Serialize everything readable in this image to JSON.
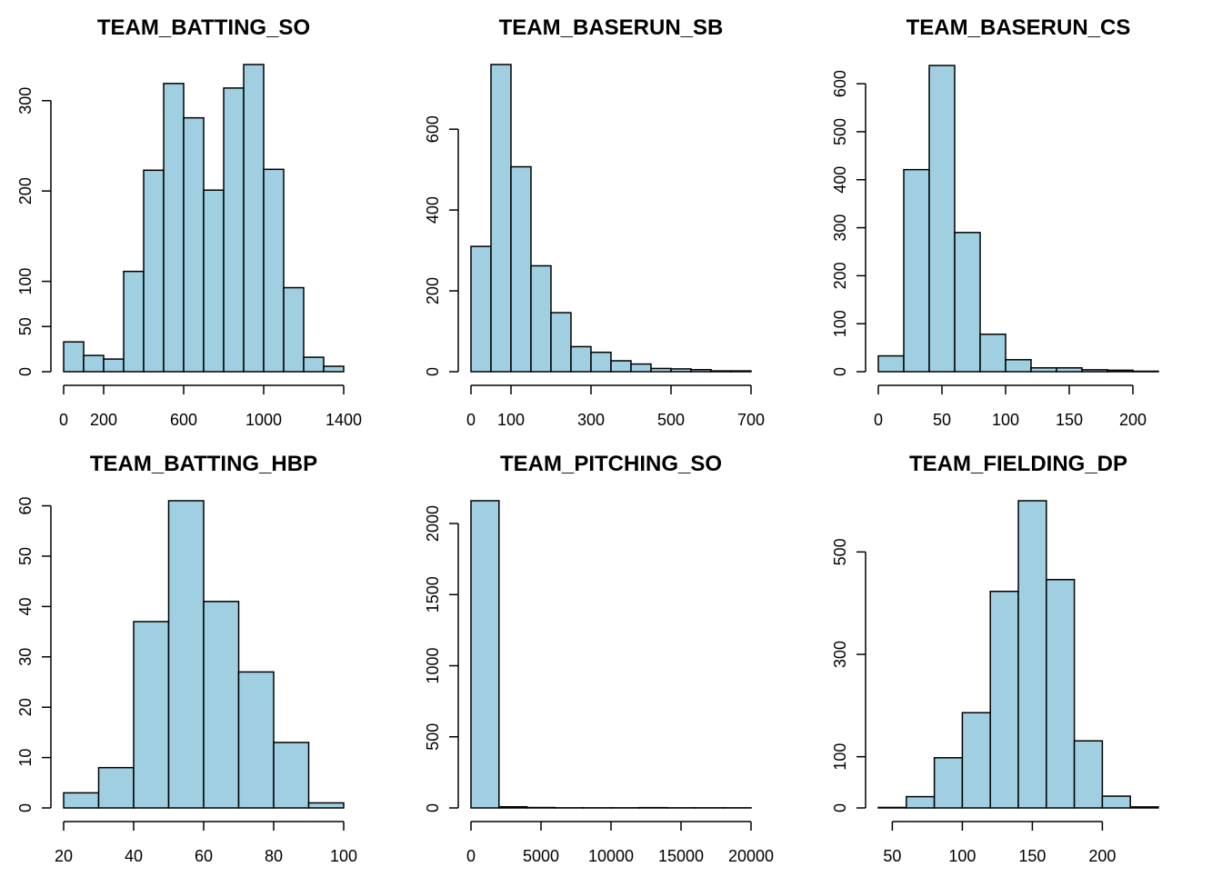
{
  "colors": {
    "bar_fill": "#9fcfe0",
    "stroke": "#000000",
    "background": "#ffffff"
  },
  "chart_data": [
    {
      "type": "bar",
      "title": "TEAM_BATTING_SO",
      "bin_edges": [
        0,
        100,
        200,
        300,
        400,
        500,
        600,
        700,
        800,
        900,
        1000,
        1100,
        1200,
        1300,
        1400
      ],
      "counts": [
        33,
        18,
        14,
        111,
        223,
        319,
        281,
        201,
        314,
        340,
        224,
        93,
        16,
        6
      ],
      "xlim": [
        0,
        1400
      ],
      "ylim": [
        0,
        340
      ],
      "xticks": [
        0,
        200,
        600,
        1000,
        1400
      ],
      "xtick_labels": [
        "0",
        "200",
        "600",
        "1000",
        "1400"
      ],
      "yticks": [
        0,
        50,
        100,
        200,
        300
      ],
      "ytick_labels": [
        "0",
        "50",
        "100",
        "200",
        "300"
      ],
      "grid": false
    },
    {
      "type": "bar",
      "title": "TEAM_BASERUN_SB",
      "bin_edges": [
        0,
        50,
        100,
        150,
        200,
        250,
        300,
        350,
        400,
        450,
        500,
        550,
        600,
        650,
        700
      ],
      "counts": [
        310,
        760,
        507,
        262,
        146,
        62,
        48,
        27,
        19,
        8,
        7,
        5,
        2,
        2
      ],
      "xlim": [
        0,
        700
      ],
      "ylim": [
        0,
        760
      ],
      "xticks": [
        0,
        100,
        300,
        500,
        700
      ],
      "xtick_labels": [
        "0",
        "100",
        "300",
        "500",
        "700"
      ],
      "yticks": [
        0,
        200,
        400,
        600
      ],
      "ytick_labels": [
        "0",
        "200",
        "400",
        "600"
      ],
      "grid": false
    },
    {
      "type": "bar",
      "title": "TEAM_BASERUN_CS",
      "bin_edges": [
        0,
        20,
        40,
        60,
        80,
        100,
        120,
        140,
        160,
        180,
        200,
        220
      ],
      "counts": [
        33,
        421,
        638,
        290,
        78,
        25,
        8,
        8,
        4,
        3,
        1
      ],
      "xlim": [
        0,
        220
      ],
      "ylim": [
        0,
        640
      ],
      "xticks": [
        0,
        50,
        100,
        150,
        200
      ],
      "xtick_labels": [
        "0",
        "50",
        "100",
        "150",
        "200"
      ],
      "yticks": [
        0,
        100,
        200,
        300,
        400,
        500,
        600
      ],
      "ytick_labels": [
        "0",
        "100",
        "200",
        "300",
        "400",
        "500",
        "600"
      ],
      "grid": false
    },
    {
      "type": "bar",
      "title": "TEAM_BATTING_HBP",
      "bin_edges": [
        20,
        30,
        40,
        50,
        60,
        70,
        80,
        90,
        100
      ],
      "counts": [
        3,
        8,
        37,
        61,
        41,
        27,
        13,
        1
      ],
      "xlim": [
        20,
        100
      ],
      "ylim": [
        0,
        61
      ],
      "xticks": [
        20,
        40,
        60,
        80,
        100
      ],
      "xtick_labels": [
        "20",
        "40",
        "60",
        "80",
        "100"
      ],
      "yticks": [
        0,
        10,
        20,
        30,
        40,
        50,
        60
      ],
      "ytick_labels": [
        "0",
        "10",
        "20",
        "30",
        "40",
        "50",
        "60"
      ],
      "grid": false
    },
    {
      "type": "bar",
      "title": "TEAM_PITCHING_SO",
      "bin_edges": [
        0,
        2000,
        4000,
        6000,
        8000,
        10000,
        12000,
        14000,
        16000,
        18000,
        20000
      ],
      "counts": [
        2160,
        8,
        3,
        1,
        1,
        1,
        2,
        1,
        1,
        1
      ],
      "xlim": [
        0,
        20000
      ],
      "ylim": [
        0,
        2160
      ],
      "xticks": [
        0,
        5000,
        10000,
        15000,
        20000
      ],
      "xtick_labels": [
        "0",
        "5000",
        "10000",
        "15000",
        "20000"
      ],
      "yticks": [
        0,
        500,
        1000,
        1500,
        2000
      ],
      "ytick_labels": [
        "0",
        "500",
        "1000",
        "1500",
        "2000"
      ],
      "grid": false
    },
    {
      "type": "bar",
      "title": "TEAM_FIELDING_DP",
      "bin_edges": [
        40,
        60,
        80,
        100,
        120,
        140,
        160,
        180,
        200,
        220,
        240
      ],
      "counts": [
        1,
        22,
        98,
        186,
        423,
        600,
        446,
        131,
        23,
        2
      ],
      "xlim": [
        40,
        240
      ],
      "ylim": [
        0,
        600
      ],
      "xticks": [
        50,
        100,
        150,
        200
      ],
      "xtick_labels": [
        "50",
        "100",
        "150",
        "200"
      ],
      "yticks": [
        0,
        100,
        300,
        500
      ],
      "ytick_labels": [
        "0",
        "100",
        "300",
        "500"
      ],
      "grid": false
    }
  ]
}
